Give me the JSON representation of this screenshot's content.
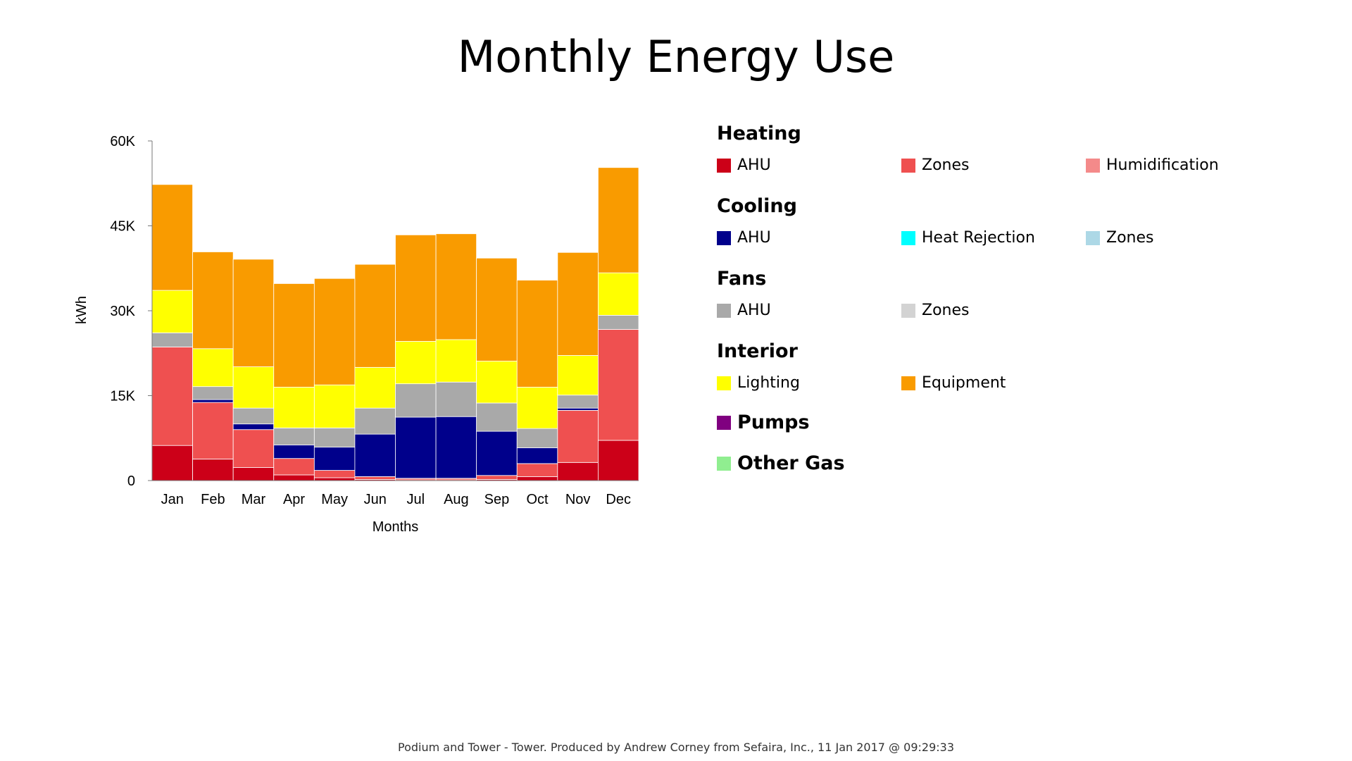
{
  "title": "Monthly Energy Use",
  "footer": "Podium and Tower - Tower. Produced by Andrew Corney from Sefaira, Inc., 11 Jan 2017 @ 09:29:33",
  "legend": {
    "groups": [
      {
        "title": "Heating",
        "items": [
          {
            "label": "AHU",
            "color": "#cc0018"
          },
          {
            "label": "Zones",
            "color": "#ef5050"
          },
          {
            "label": "Humidification",
            "color": "#f48a8a"
          }
        ]
      },
      {
        "title": "Cooling",
        "items": [
          {
            "label": "AHU",
            "color": "#00008b"
          },
          {
            "label": "Heat Rejection",
            "color": "#00ffff"
          },
          {
            "label": "Zones",
            "color": "#add8e6"
          }
        ]
      },
      {
        "title": "Fans",
        "items": [
          {
            "label": "AHU",
            "color": "#a9a9a9"
          },
          {
            "label": "Zones",
            "color": "#d3d3d3"
          }
        ]
      },
      {
        "title": "Interior",
        "items": [
          {
            "label": "Lighting",
            "color": "#ffff00"
          },
          {
            "label": "Equipment",
            "color": "#f99b00"
          }
        ]
      }
    ],
    "singles": [
      {
        "label": "Pumps",
        "color": "#800080"
      },
      {
        "label": "Other Gas",
        "color": "#90ee90"
      }
    ]
  },
  "chart_data": {
    "type": "bar",
    "stacked": true,
    "title": "Monthly Energy Use",
    "xlabel": "Months",
    "ylabel": "kWh",
    "ylim": [
      0,
      60000
    ],
    "yticks": [
      0,
      15000,
      30000,
      45000,
      60000
    ],
    "ytick_labels": [
      "0",
      "15K",
      "30K",
      "45K",
      "60K"
    ],
    "categories": [
      "Jan",
      "Feb",
      "Mar",
      "Apr",
      "May",
      "Jun",
      "Jul",
      "Aug",
      "Sep",
      "Oct",
      "Nov",
      "Dec"
    ],
    "series": [
      {
        "name": "Heating AHU",
        "color": "#cc0018",
        "values": [
          6200,
          3800,
          2300,
          1000,
          500,
          200,
          0,
          0,
          200,
          700,
          3200,
          7100
        ]
      },
      {
        "name": "Heating Zones",
        "color": "#ef5050",
        "values": [
          17400,
          10000,
          6700,
          2900,
          1300,
          500,
          0,
          0,
          700,
          2300,
          9200,
          19600
        ]
      },
      {
        "name": "Heating Humidification",
        "color": "#f48a8a",
        "values": [
          0,
          0,
          0,
          0,
          0,
          0,
          400,
          400,
          0,
          0,
          0,
          0
        ]
      },
      {
        "name": "Cooling AHU",
        "color": "#00008b",
        "values": [
          0,
          500,
          1000,
          2400,
          4100,
          7500,
          10800,
          10900,
          7800,
          2800,
          400,
          0
        ]
      },
      {
        "name": "Cooling Heat Rejection",
        "color": "#00ffff",
        "values": [
          0,
          0,
          0,
          0,
          0,
          0,
          0,
          0,
          0,
          0,
          0,
          0
        ]
      },
      {
        "name": "Cooling Zones",
        "color": "#add8e6",
        "values": [
          0,
          0,
          0,
          0,
          0,
          0,
          0,
          0,
          0,
          0,
          0,
          0
        ]
      },
      {
        "name": "Fans AHU",
        "color": "#a9a9a9",
        "values": [
          2500,
          2300,
          2800,
          3000,
          3400,
          4600,
          5900,
          6100,
          5000,
          3400,
          2300,
          2500
        ]
      },
      {
        "name": "Fans Zones",
        "color": "#d3d3d3",
        "values": [
          0,
          0,
          0,
          0,
          0,
          0,
          0,
          0,
          0,
          0,
          0,
          0
        ]
      },
      {
        "name": "Interior Lighting",
        "color": "#ffff00",
        "values": [
          7500,
          6700,
          7300,
          7200,
          7600,
          7200,
          7500,
          7500,
          7400,
          7300,
          7000,
          7500
        ]
      },
      {
        "name": "Interior Equipment",
        "color": "#f99b00",
        "values": [
          18700,
          17100,
          19000,
          18300,
          18800,
          18200,
          18800,
          18700,
          18200,
          18900,
          18200,
          18600
        ]
      },
      {
        "name": "Pumps",
        "color": "#800080",
        "values": [
          0,
          0,
          0,
          0,
          0,
          0,
          0,
          0,
          0,
          0,
          0,
          0
        ]
      },
      {
        "name": "Other Gas",
        "color": "#90ee90",
        "values": [
          0,
          0,
          0,
          0,
          0,
          0,
          0,
          0,
          0,
          0,
          0,
          0
        ]
      }
    ],
    "grid": false,
    "legend_position": "right"
  }
}
